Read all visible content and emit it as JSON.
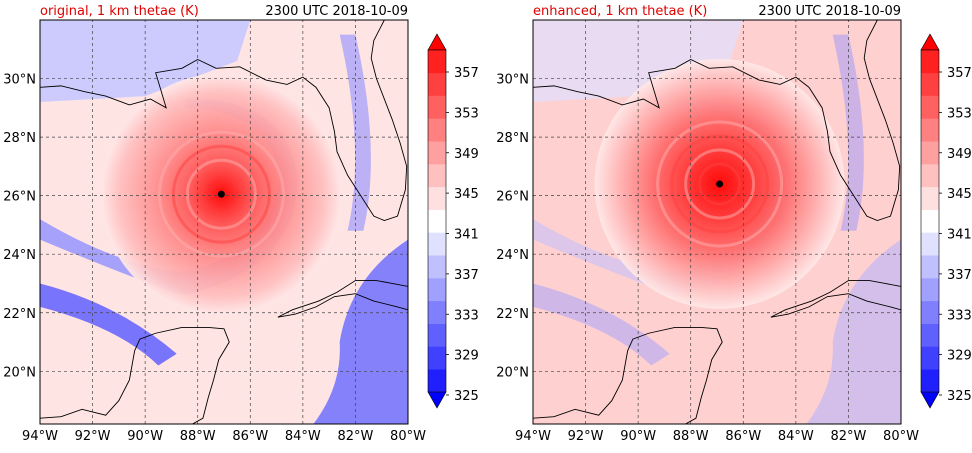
{
  "panels": [
    {
      "id": "original",
      "title_left": "original, 1 km thetae (K)",
      "title_right": "2300 UTC 2018-10-09",
      "storm_center": {
        "lon": -87.1,
        "lat": 26.05
      },
      "peak_intensity": 0.85
    },
    {
      "id": "enhanced",
      "title_left": "enhanced, 1 km thetae (K)",
      "title_right": "2300 UTC 2018-10-09",
      "storm_center": {
        "lon": -86.9,
        "lat": 26.4
      },
      "peak_intensity": 1.0
    }
  ],
  "map": {
    "lon_range": [
      -94,
      -80
    ],
    "lat_range": [
      18.2,
      32
    ],
    "lon_ticks": [
      {
        "value": -94,
        "label": "94°W"
      },
      {
        "value": -92,
        "label": "92°W"
      },
      {
        "value": -90,
        "label": "90°W"
      },
      {
        "value": -88,
        "label": "88°W"
      },
      {
        "value": -86,
        "label": "86°W"
      },
      {
        "value": -84,
        "label": "84°W"
      },
      {
        "value": -82,
        "label": "82°W"
      },
      {
        "value": -80,
        "label": "80°W"
      }
    ],
    "lat_ticks": [
      {
        "value": 20,
        "label": "20°N"
      },
      {
        "value": 22,
        "label": "22°N"
      },
      {
        "value": 24,
        "label": "24°N"
      },
      {
        "value": 26,
        "label": "26°N"
      },
      {
        "value": 28,
        "label": "28°N"
      },
      {
        "value": 30,
        "label": "30°N"
      }
    ],
    "gridlines": true
  },
  "colorbar": {
    "labels": [
      "357",
      "353",
      "349",
      "345",
      "341",
      "337",
      "333",
      "329",
      "325"
    ],
    "levels": [
      325,
      327,
      329,
      331,
      333,
      335,
      337,
      339,
      341,
      343,
      345,
      347,
      349,
      351,
      353,
      355,
      357,
      359
    ],
    "colors": [
      "#0000ff",
      "#2020ff",
      "#4040ff",
      "#6060ff",
      "#8080ff",
      "#a0a0ff",
      "#c0c0ff",
      "#e0e0ff",
      "#ffffff",
      "#ffe0e0",
      "#ffc0c0",
      "#ffa0a0",
      "#ff8080",
      "#ff6060",
      "#ff4040",
      "#ff2020",
      "#ff0000"
    ],
    "extend": "both"
  },
  "colors": {
    "title_left": "#e00000",
    "title_right": "#000000",
    "coast": "#000000",
    "grid": "#555555"
  }
}
